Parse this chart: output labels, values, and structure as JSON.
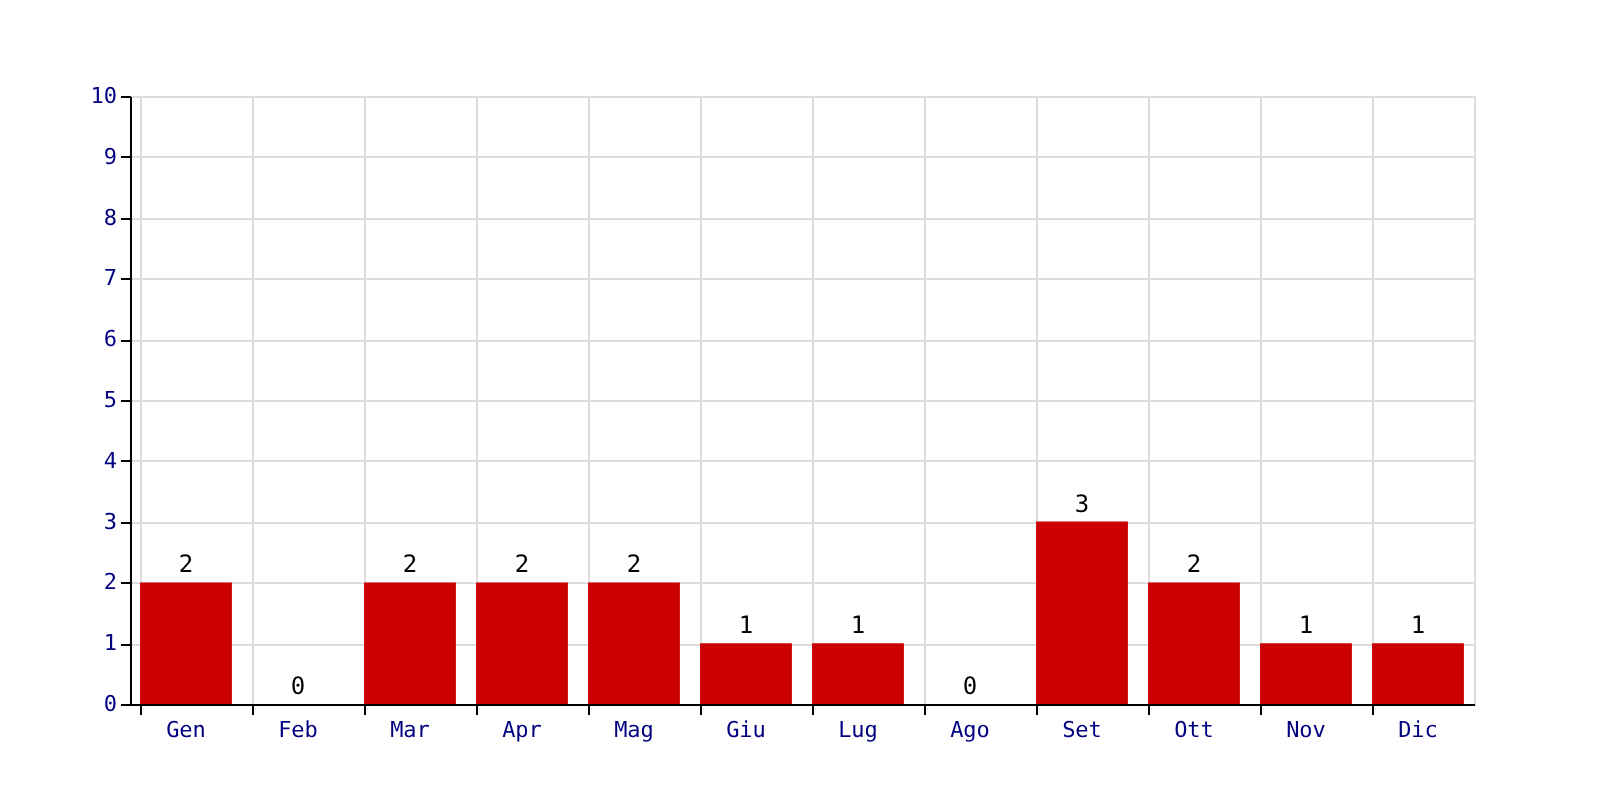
{
  "chart_data": {
    "type": "bar",
    "categories": [
      "Gen",
      "Feb",
      "Mar",
      "Apr",
      "Mag",
      "Giu",
      "Lug",
      "Ago",
      "Set",
      "Ott",
      "Nov",
      "Dic"
    ],
    "values": [
      2,
      0,
      2,
      2,
      2,
      1,
      1,
      0,
      3,
      2,
      1,
      1
    ],
    "color": "#cc0000",
    "ylim": [
      0,
      10
    ],
    "yticks": [
      0,
      1,
      2,
      3,
      4,
      5,
      6,
      7,
      8,
      9,
      10
    ],
    "grid": true,
    "data_labels": true
  }
}
